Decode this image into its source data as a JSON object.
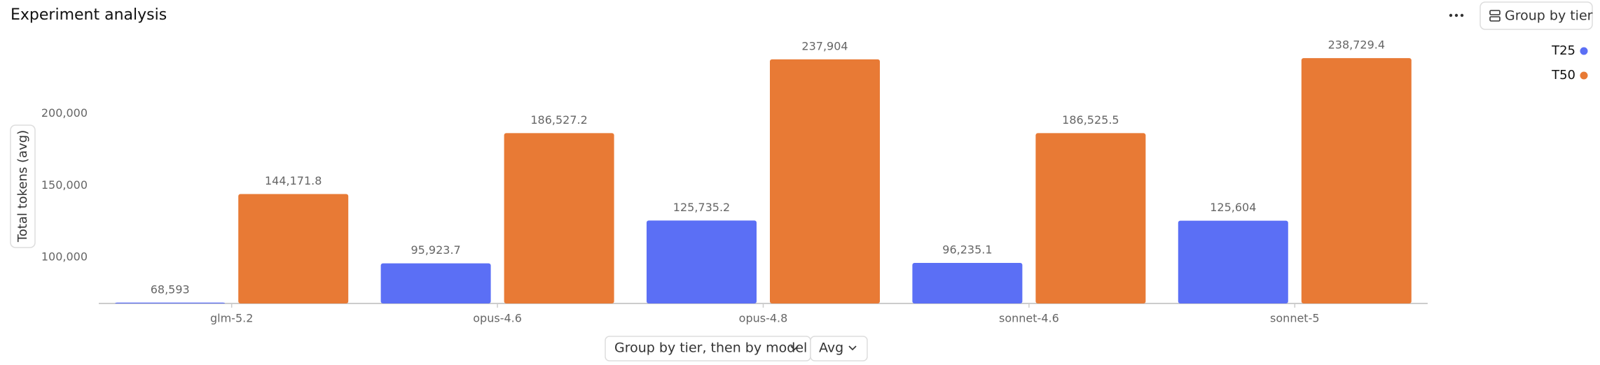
{
  "toolbar": {
    "title": "Experiment analysis",
    "group_button": "Group by tier",
    "group_select": "Group by tier, then by model",
    "aggregate_select": "Avg"
  },
  "chart_data": {
    "type": "bar",
    "y_label": "Total tokens (avg)",
    "categories": [
      "glm-5.2",
      "opus-4.6",
      "opus-4.8",
      "sonnet-4.6",
      "sonnet-5"
    ],
    "series": [
      {
        "name": "T25",
        "color": "#5b6ff5",
        "values": [
          68593,
          95923.7,
          125735.2,
          96235.1,
          125604
        ],
        "value_labels": [
          "68,593",
          "95,923.7",
          "125,735.2",
          "96,235.1",
          "125,604"
        ]
      },
      {
        "name": "T50",
        "color": "#e87a35",
        "values": [
          144171.8,
          186527.2,
          237904,
          186525.5,
          238729.4
        ],
        "value_labels": [
          "144,171.8",
          "186,527.2",
          "237,904",
          "186,525.5",
          "238,729.4"
        ]
      }
    ],
    "ylim": [
      68000,
      250000
    ],
    "yticks": [
      {
        "value": 100000,
        "label": "100,000"
      },
      {
        "value": 150000,
        "label": "150,000"
      },
      {
        "value": 200000,
        "label": "200,000"
      }
    ],
    "grid": false,
    "legend": "top-right"
  }
}
